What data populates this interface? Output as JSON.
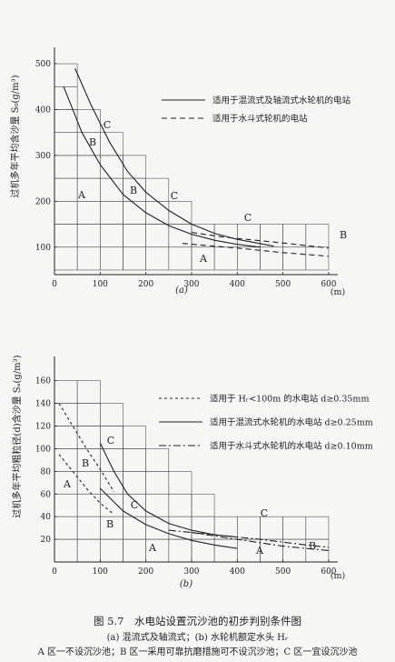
{
  "chart_data": [
    {
      "type": "line",
      "panel_label": "(a)",
      "ylabel": "过机多年平均含沙量 S₀(g/m³)",
      "xunit": "(m)",
      "xlim": [
        0,
        620
      ],
      "ylim": [
        40,
        520
      ],
      "xticks": [
        0,
        100,
        200,
        300,
        400,
        500,
        600
      ],
      "yticks": [
        100,
        200,
        300,
        400,
        500
      ],
      "legend": [
        {
          "label": "适用于混流式及轴流式水轮机的电站",
          "style": "solid"
        },
        {
          "label": "适用于水斗式轮机的电站",
          "style": "dashed"
        }
      ],
      "series": [
        {
          "style": "solid",
          "x": [
            20,
            60,
            100,
            150,
            200,
            250,
            300,
            350,
            400,
            450
          ],
          "y": [
            450,
            350,
            280,
            215,
            175,
            147,
            128,
            115,
            106,
            100
          ]
        },
        {
          "style": "solid",
          "x": [
            45,
            80,
            120,
            160,
            200,
            250,
            300,
            350,
            400,
            480
          ],
          "y": [
            490,
            410,
            330,
            265,
            220,
            180,
            150,
            130,
            117,
            102
          ]
        },
        {
          "style": "dashed",
          "x": [
            280,
            350,
            420,
            500,
            600
          ],
          "y": [
            108,
            102,
            96,
            88,
            80
          ]
        },
        {
          "style": "dashed",
          "x": [
            300,
            370,
            440,
            510,
            600
          ],
          "y": [
            132,
            122,
            115,
            108,
            98
          ]
        }
      ],
      "region_labels": [
        "A",
        "B",
        "C",
        "B",
        "C",
        "C",
        "A",
        "B"
      ]
    },
    {
      "type": "line",
      "panel_label": "(b)",
      "ylabel": "过机多年平均粗粒径(d)含沙量 Sₐ(g/m³)",
      "xunit": "(m)",
      "xlim": [
        0,
        620
      ],
      "ylim": [
        0,
        175
      ],
      "xticks": [
        0,
        100,
        200,
        300,
        400,
        500,
        600
      ],
      "yticks": [
        20,
        40,
        60,
        80,
        100,
        120,
        140,
        160
      ],
      "legend": [
        {
          "label": "适用于 Hᵣ<100m 的水电站 d≥0.35mm",
          "style": "dotted"
        },
        {
          "label": "适用于混流式水轮机的水电站 d≥0.25mm",
          "style": "solid"
        },
        {
          "label": "适用于水斗式水轮机的水电站 d≥0.10mm",
          "style": "dashdot"
        }
      ],
      "series": [
        {
          "style": "dotted",
          "x": [
            10,
            40,
            70,
            100,
            130
          ],
          "y": [
            140,
            120,
            100,
            82,
            62
          ]
        },
        {
          "style": "dotted",
          "x": [
            10,
            40,
            70,
            100,
            130
          ],
          "y": [
            95,
            80,
            65,
            52,
            42
          ]
        },
        {
          "style": "solid",
          "x": [
            100,
            130,
            160,
            200,
            250,
            300,
            350,
            400
          ],
          "y": [
            105,
            80,
            60,
            45,
            34,
            28,
            24,
            22
          ]
        },
        {
          "style": "solid",
          "x": [
            100,
            150,
            200,
            250,
            300,
            350,
            400
          ],
          "y": [
            65,
            45,
            33,
            25,
            19,
            15,
            12
          ]
        },
        {
          "style": "dashdot",
          "x": [
            250,
            350,
            450,
            550,
            600
          ],
          "y": [
            28,
            24,
            20,
            15,
            13
          ]
        },
        {
          "style": "dashdot",
          "x": [
            300,
            400,
            500,
            600
          ],
          "y": [
            26,
            20,
            14,
            10
          ]
        }
      ],
      "region_labels": [
        "C",
        "B",
        "A",
        "C",
        "B",
        "A",
        "C",
        "A",
        "B"
      ]
    }
  ],
  "caption": {
    "title": "图 5.7　水电站设置沉沙池的初步判别条件图",
    "line2": "(a) 混流式及轴流式；(b) 水轮机额定水头 Hᵣ",
    "line3": "A 区一不设沉沙池；B 区一采用可靠抗磨措施可不设沉沙池；C 区一宜设沉沙池"
  },
  "colors": {
    "ink": "#222222",
    "paper": "#f6f6f4"
  }
}
